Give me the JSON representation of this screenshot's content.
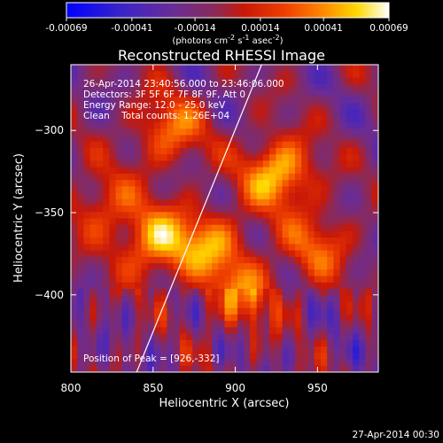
{
  "colorbar": {
    "ticks": [
      "-0.00069",
      "-0.00041",
      "-0.00014",
      "0.00014",
      "0.00041",
      "0.00069"
    ],
    "tick_values": [
      -0.00069,
      -0.00041,
      -0.00014,
      0.00014,
      0.00041,
      0.00069
    ],
    "range": [
      -0.00069,
      0.00069
    ],
    "units_parts": [
      "(photons cm",
      "-2",
      " s",
      "-1",
      " asec",
      "-2",
      ")"
    ]
  },
  "footer": {
    "date": "27-Apr-2014 00:30"
  },
  "chart_data": {
    "type": "heatmap",
    "title": "Reconstructed RHESSI Image",
    "xlabel": "Heliocentric X (arcsec)",
    "ylabel": "Heliocentric Y (arcsec)",
    "xlim": [
      800,
      987
    ],
    "ylim": [
      -447,
      -260
    ],
    "x_ticks": [
      800,
      850,
      900,
      950
    ],
    "y_ticks": [
      -300,
      -350,
      -400
    ],
    "x_tick_labels": [
      "800",
      "850",
      "900",
      "950"
    ],
    "y_tick_labels": [
      "−300",
      "−350",
      "−400"
    ],
    "colormap": "blue-purple-red-yellow-white",
    "grid": false,
    "annotations": [
      "26-Apr-2014 23:40:56.000 to 23:46:06.000",
      "Detectors: 3F 5F 6F 7F 8F 9F, Att 0",
      "Energy Range: 12.0 - 25.0 keV",
      "Clean    Total counts: 1.26E+04"
    ],
    "peak_label": "Position of Peak = [926,-332]",
    "peak_position": [
      926,
      -332
    ],
    "limb_line": [
      [
        840,
        -447
      ],
      [
        916,
        -260
      ]
    ],
    "sources": [
      {
        "x": 926,
        "y": -326,
        "intensity": 0.00066
      },
      {
        "x": 852,
        "y": -368,
        "intensity": 0.00058
      },
      {
        "x": 860,
        "y": -300,
        "intensity": 0.00045
      },
      {
        "x": 885,
        "y": -370,
        "intensity": 0.00048
      },
      {
        "x": 905,
        "y": -400,
        "intensity": 0.00042
      },
      {
        "x": 950,
        "y": -370,
        "intensity": 0.00038
      },
      {
        "x": 820,
        "y": -345,
        "intensity": 0.00035
      }
    ]
  }
}
